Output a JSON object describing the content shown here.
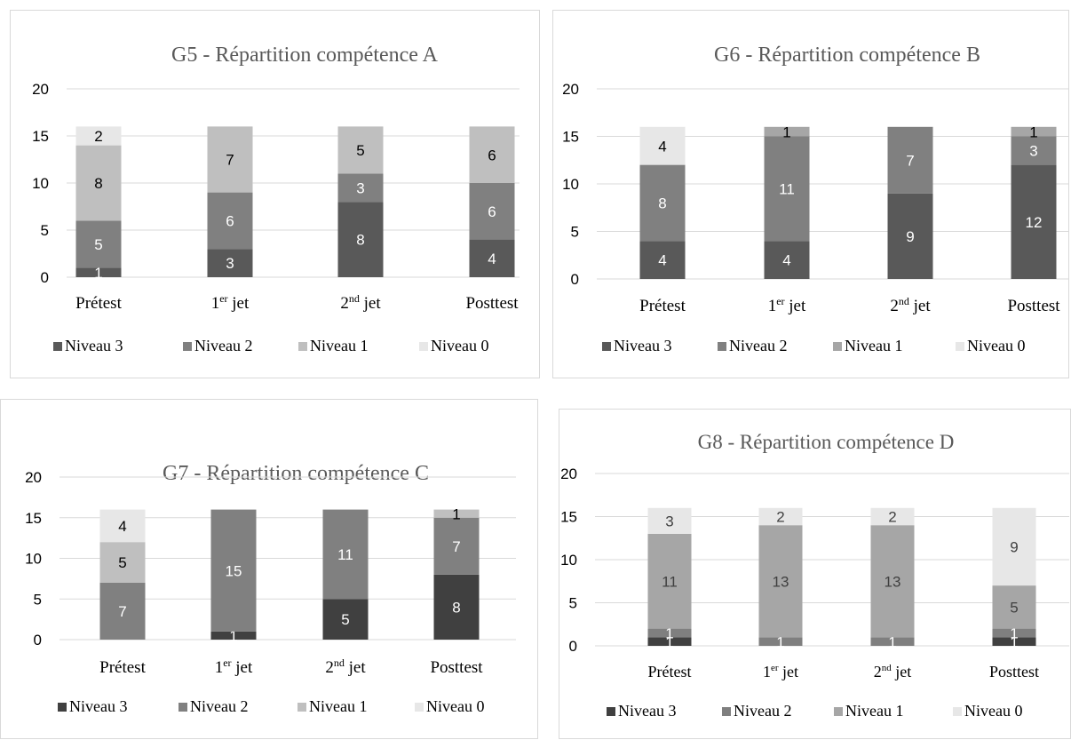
{
  "chart_data": [
    {
      "type": "bar",
      "stacked": true,
      "title": "G5 - Répartition compétence A",
      "categories": [
        {
          "base": "Prétest",
          "sup": "",
          "suffix": ""
        },
        {
          "base": "1",
          "sup": "er",
          "suffix": " jet"
        },
        {
          "base": "2",
          "sup": "nd",
          "suffix": " jet"
        },
        {
          "base": "Posttest",
          "sup": "",
          "suffix": ""
        }
      ],
      "ylim": [
        0,
        20
      ],
      "yticks": [
        0,
        5,
        10,
        15,
        20
      ],
      "grid": true,
      "legend_position": "bottom",
      "series": [
        {
          "name": "Niveau 3",
          "values": [
            1,
            3,
            8,
            4
          ],
          "color": "#595959",
          "label_color": "#ffffff"
        },
        {
          "name": "Niveau 2",
          "values": [
            5,
            6,
            3,
            6
          ],
          "color": "#808080",
          "label_color": "#ffffff"
        },
        {
          "name": "Niveau 1",
          "values": [
            8,
            7,
            5,
            6
          ],
          "color": "#bfbfbf",
          "label_color": "#000000"
        },
        {
          "name": "Niveau 0",
          "values": [
            2,
            0,
            0,
            0
          ],
          "color": "#e7e7e7",
          "label_color": "#000000"
        }
      ]
    },
    {
      "type": "bar",
      "stacked": true,
      "title": "G6 - Répartition compétence B",
      "categories": [
        {
          "base": "Prétest",
          "sup": "",
          "suffix": ""
        },
        {
          "base": "1",
          "sup": "er",
          "suffix": " jet"
        },
        {
          "base": "2",
          "sup": "nd",
          "suffix": " jet"
        },
        {
          "base": "Posttest",
          "sup": "",
          "suffix": ""
        }
      ],
      "ylim": [
        0,
        20
      ],
      "yticks": [
        0,
        5,
        10,
        15,
        20
      ],
      "grid": true,
      "legend_position": "bottom",
      "series": [
        {
          "name": "Niveau 3",
          "values": [
            4,
            4,
            9,
            12
          ],
          "color": "#595959",
          "label_color": "#ffffff"
        },
        {
          "name": "Niveau 2",
          "values": [
            8,
            11,
            7,
            3
          ],
          "color": "#808080",
          "label_color": "#ffffff"
        },
        {
          "name": "Niveau 1",
          "values": [
            0,
            1,
            0,
            1
          ],
          "color": "#a6a6a6",
          "label_color": "#000000"
        },
        {
          "name": "Niveau 0",
          "values": [
            4,
            0,
            0,
            0
          ],
          "color": "#e7e7e7",
          "label_color": "#000000"
        }
      ]
    },
    {
      "type": "bar",
      "stacked": true,
      "title": "G7 - Répartition compétence C",
      "categories": [
        {
          "base": "Prétest",
          "sup": "",
          "suffix": ""
        },
        {
          "base": "1",
          "sup": "er",
          "suffix": " jet"
        },
        {
          "base": "2",
          "sup": "nd",
          "suffix": " jet"
        },
        {
          "base": "Posttest",
          "sup": "",
          "suffix": ""
        }
      ],
      "ylim": [
        0,
        20
      ],
      "yticks": [
        0,
        5,
        10,
        15,
        20
      ],
      "grid": true,
      "legend_position": "bottom",
      "series": [
        {
          "name": "Niveau 3",
          "values": [
            0,
            1,
            5,
            8
          ],
          "color": "#404040",
          "label_color": "#ffffff"
        },
        {
          "name": "Niveau 2",
          "values": [
            7,
            15,
            11,
            7
          ],
          "color": "#808080",
          "label_color": "#ffffff"
        },
        {
          "name": "Niveau 1",
          "values": [
            5,
            0,
            0,
            1
          ],
          "color": "#bfbfbf",
          "label_color": "#000000"
        },
        {
          "name": "Niveau 0",
          "values": [
            4,
            0,
            0,
            0
          ],
          "color": "#e7e7e7",
          "label_color": "#000000"
        }
      ]
    },
    {
      "type": "bar",
      "stacked": true,
      "title": "G8 - Répartition compétence D",
      "categories": [
        {
          "base": "Prétest",
          "sup": "",
          "suffix": ""
        },
        {
          "base": "1",
          "sup": "er",
          "suffix": " jet"
        },
        {
          "base": "2",
          "sup": "nd",
          "suffix": " jet"
        },
        {
          "base": "Posttest",
          "sup": "",
          "suffix": ""
        }
      ],
      "ylim": [
        0,
        20
      ],
      "yticks": [
        0,
        5,
        10,
        15,
        20
      ],
      "grid": true,
      "legend_position": "bottom",
      "series": [
        {
          "name": "Niveau 3",
          "values": [
            1,
            0,
            0,
            1
          ],
          "color": "#404040",
          "label_color": "#ffffff"
        },
        {
          "name": "Niveau 2",
          "values": [
            1,
            1,
            1,
            1
          ],
          "color": "#7f7f7f",
          "label_color": "#ffffff"
        },
        {
          "name": "Niveau 1",
          "values": [
            11,
            13,
            13,
            5
          ],
          "color": "#a6a6a6",
          "label_color": "#404040"
        },
        {
          "name": "Niveau 0",
          "values": [
            3,
            2,
            2,
            9
          ],
          "color": "#e7e7e7",
          "label_color": "#404040"
        }
      ]
    }
  ]
}
